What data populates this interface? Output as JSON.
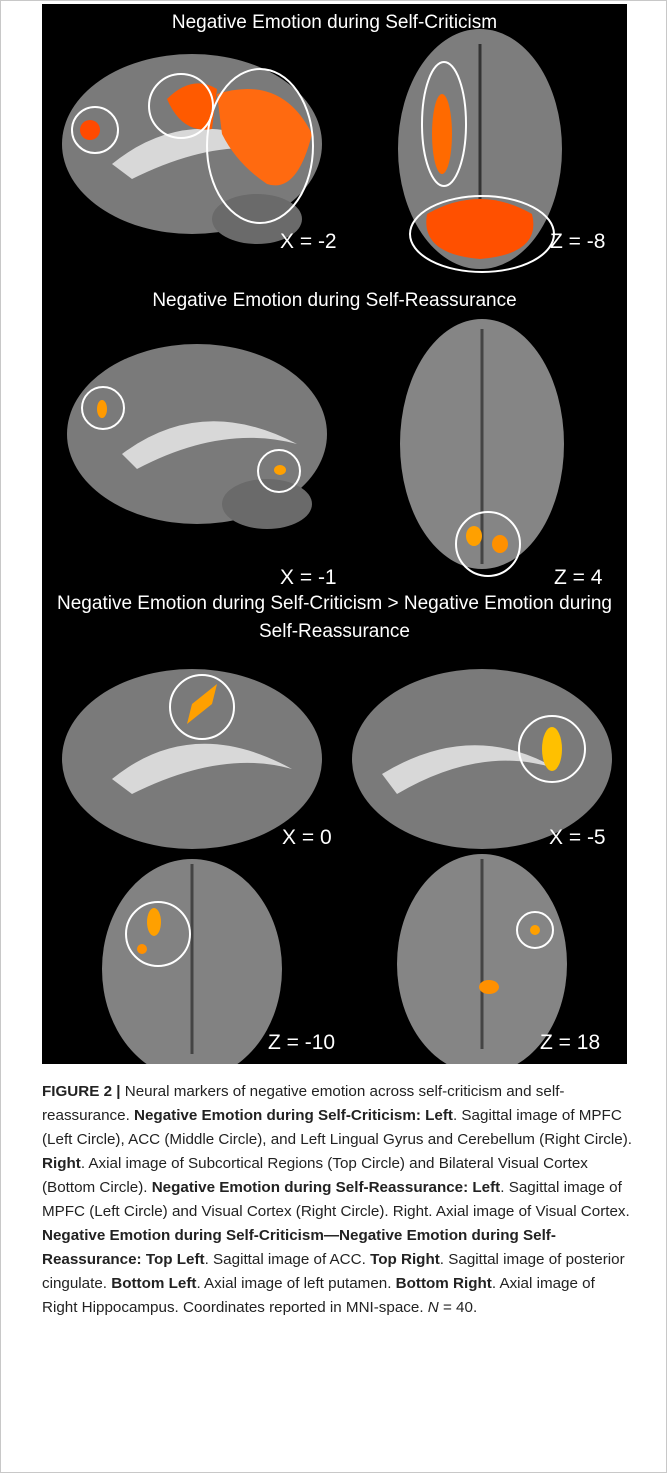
{
  "figure": {
    "panels": [
      {
        "title": "Negative Emotion during Self-Criticism",
        "images": [
          {
            "label": "X = -2"
          },
          {
            "label": "Z = -8"
          }
        ]
      },
      {
        "title": "Negative Emotion during Self-Reassurance",
        "images": [
          {
            "label": "X = -1"
          },
          {
            "label": "Z = 4"
          }
        ]
      },
      {
        "title": "Negative Emotion during Self-Criticism > Negative Emotion during Self-Reassurance",
        "images": [
          {
            "label": "X = 0"
          },
          {
            "label": "X = -5"
          },
          {
            "label": "Z = -10"
          },
          {
            "label": "Z = 18"
          }
        ]
      }
    ],
    "caption": [
      {
        "text": "FIGURE 2 |",
        "style": "bold"
      },
      {
        "text": " Neural markers of negative emotion across self-criticism and self-reassurance. ",
        "style": "normal"
      },
      {
        "text": "Negative Emotion during Self-Criticism: Left",
        "style": "bold"
      },
      {
        "text": ". Sagittal image of MPFC (Left Circle), ACC (Middle Circle), and Left Lingual Gyrus and Cerebellum (Right Circle). ",
        "style": "normal"
      },
      {
        "text": "Right",
        "style": "bold"
      },
      {
        "text": ". Axial image of Subcortical Regions (Top Circle) and Bilateral Visual Cortex (Bottom Circle). ",
        "style": "normal"
      },
      {
        "text": "Negative Emotion during Self-Reassurance: Left",
        "style": "bold"
      },
      {
        "text": ". Sagittal image of MPFC (Left Circle) and Visual Cortex (Right Circle). Right. Axial image of Visual Cortex. ",
        "style": "normal"
      },
      {
        "text": "Negative Emotion during Self-Criticism—Negative Emotion during Self-Reassurance: Top Left",
        "style": "bold"
      },
      {
        "text": ". Sagittal image of ACC. ",
        "style": "normal"
      },
      {
        "text": "Top Right",
        "style": "bold"
      },
      {
        "text": ". Sagittal image of posterior cingulate. ",
        "style": "normal"
      },
      {
        "text": "Bottom Left",
        "style": "bold"
      },
      {
        "text": ". Axial image of left putamen. ",
        "style": "normal"
      },
      {
        "text": "Bottom Right",
        "style": "bold"
      },
      {
        "text": ". Axial image of Right Hippocampus. Coordinates reported in MNI-space. ",
        "style": "normal"
      },
      {
        "text": "N",
        "style": "italic"
      },
      {
        "text": " = 40.",
        "style": "normal"
      }
    ]
  }
}
